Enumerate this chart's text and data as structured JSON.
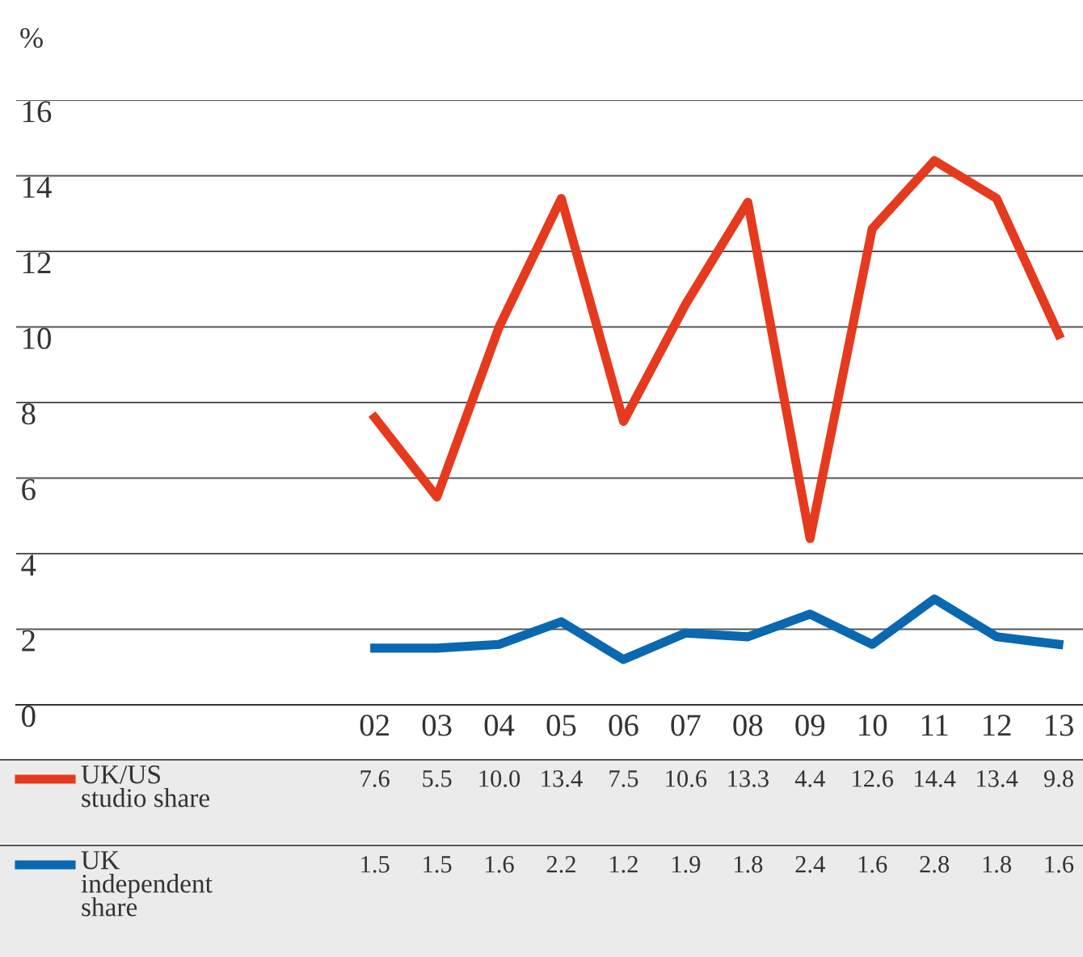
{
  "chart_data": {
    "type": "line",
    "ylabel": "%",
    "categories": [
      "02",
      "03",
      "04",
      "05",
      "06",
      "07",
      "08",
      "09",
      "10",
      "11",
      "12",
      "13"
    ],
    "series": [
      {
        "name": "UK/US\nstudio share",
        "color": "#e63a1e",
        "values": [
          7.6,
          5.5,
          10.0,
          13.4,
          7.5,
          10.6,
          13.3,
          4.4,
          12.6,
          14.4,
          13.4,
          9.8
        ],
        "value_labels": [
          "7.6",
          "5.5",
          "10.0",
          "13.4",
          "7.5",
          "10.6",
          "13.3",
          "4.4",
          "12.6",
          "14.4",
          "13.4",
          "9.8"
        ]
      },
      {
        "name": "UK\nindependent\nshare",
        "color": "#0a68b0",
        "values": [
          1.5,
          1.5,
          1.6,
          2.2,
          1.2,
          1.9,
          1.8,
          2.4,
          1.6,
          2.8,
          1.8,
          1.6
        ],
        "value_labels": [
          "1.5",
          "1.5",
          "1.6",
          "2.2",
          "1.2",
          "1.9",
          "1.8",
          "2.4",
          "1.6",
          "2.8",
          "1.8",
          "1.6"
        ]
      }
    ],
    "ylim": [
      0,
      16
    ],
    "yticks": [
      0,
      2,
      4,
      6,
      8,
      10,
      12,
      14,
      16
    ],
    "grid": "y",
    "legend": "bottom",
    "marker": "none",
    "line_style": "solid"
  }
}
